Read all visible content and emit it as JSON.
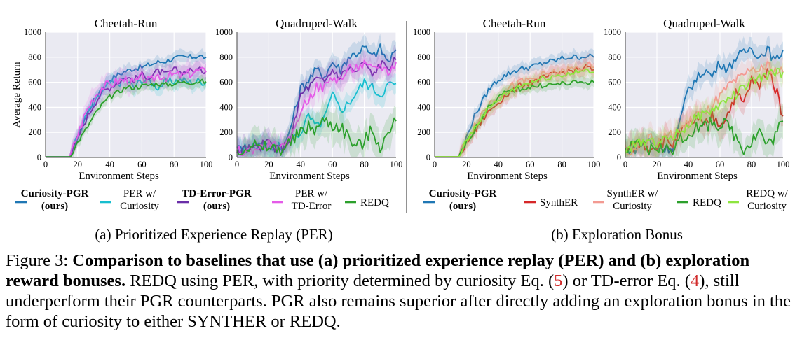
{
  "figure": {
    "panel_a_caption": "(a) Prioritized Experience Replay (PER)",
    "panel_b_caption": "(b) Exploration Bonus",
    "xlabel": "Environment Steps",
    "ylabel": "Average Return",
    "legend_a": [
      {
        "label": "Curiosity-PGR",
        "label2": "(ours)",
        "bold": true,
        "color": "#1f77b4"
      },
      {
        "label": "PER w/",
        "label2": "Curiosity",
        "bold": false,
        "color": "#17becf"
      },
      {
        "label": "TD-Error-PGR",
        "label2": "(ours)",
        "bold": true,
        "color": "#6a2ea8"
      },
      {
        "label": "PER w/",
        "label2": "TD-Error",
        "bold": false,
        "color": "#e45be8"
      },
      {
        "label": "REDQ",
        "label2": "",
        "bold": false,
        "color": "#2ca02c"
      }
    ],
    "legend_b": [
      {
        "label": "Curiosity-PGR",
        "label2": "(ours)",
        "bold": true,
        "color": "#1f77b4"
      },
      {
        "label": "SynthER",
        "label2": "",
        "bold": false,
        "color": "#d62728"
      },
      {
        "label": "SynthER w/",
        "label2": "Curiosity",
        "bold": false,
        "color": "#f39a92"
      },
      {
        "label": "REDQ",
        "label2": "",
        "bold": false,
        "color": "#2ca02c"
      },
      {
        "label": "REDQ w/",
        "label2": "Curiosity",
        "bold": false,
        "color": "#8ee53f"
      }
    ]
  },
  "caption": {
    "lead": "Figure 3: ",
    "bold": "Comparison to baselines that use (a) prioritized experience replay (PER) and (b) exploration reward bonuses.",
    "t1": " ",
    "sc1": "REDQ",
    "t2": " using PER, with priority determined by curiosity Eq. (",
    "ref1": "5",
    "t3": ") or TD-error Eq. (",
    "ref2": "4",
    "t4": "), still underperform their ",
    "sc2": "PGR",
    "t5": " counterparts. ",
    "sc3": "PGR",
    "t6": " also remains superior after directly adding an exploration bonus in the form of curiosity to either ",
    "sc4": "SYNTHER",
    "t7": " or ",
    "sc5": "REDQ",
    "t8": "."
  },
  "chart_data": [
    {
      "type": "line",
      "title": "Cheetah-Run",
      "panel": "a",
      "xlabel": "Environment Steps",
      "ylabel": "Average Return",
      "xlim": [
        0,
        100
      ],
      "ylim": [
        0,
        1000
      ],
      "xticks": [
        0,
        20,
        40,
        60,
        80,
        100
      ],
      "yticks": [
        0,
        200,
        400,
        600,
        800,
        1000
      ],
      "x": [
        0,
        5,
        10,
        15,
        20,
        25,
        30,
        35,
        40,
        45,
        50,
        55,
        60,
        65,
        70,
        75,
        80,
        85,
        90,
        95,
        100
      ],
      "series": [
        {
          "name": "Curiosity-PGR",
          "color": "#1f77b4",
          "band": 50,
          "values": [
            5,
            5,
            5,
            5,
            160,
            330,
            450,
            560,
            620,
            660,
            690,
            710,
            720,
            740,
            760,
            770,
            790,
            800,
            800,
            810,
            800
          ]
        },
        {
          "name": "PER w/ Curiosity",
          "color": "#17becf",
          "band": 70,
          "values": [
            5,
            5,
            5,
            5,
            170,
            330,
            420,
            520,
            590,
            590,
            620,
            560,
            620,
            610,
            560,
            600,
            610,
            620,
            600,
            610,
            600
          ]
        },
        {
          "name": "TD-Error-PGR",
          "color": "#6a2ea8",
          "band": 60,
          "values": [
            5,
            5,
            5,
            5,
            150,
            300,
            420,
            520,
            560,
            600,
            640,
            620,
            660,
            640,
            690,
            660,
            700,
            680,
            690,
            700,
            690
          ]
        },
        {
          "name": "PER w/ TD-Error",
          "color": "#e45be8",
          "band": 90,
          "values": [
            5,
            5,
            5,
            5,
            180,
            360,
            480,
            560,
            580,
            610,
            620,
            590,
            640,
            600,
            660,
            640,
            660,
            650,
            670,
            690,
            680
          ]
        },
        {
          "name": "REDQ",
          "color": "#2ca02c",
          "band": 45,
          "values": [
            5,
            5,
            5,
            5,
            120,
            220,
            330,
            420,
            480,
            520,
            560,
            560,
            570,
            580,
            590,
            580,
            590,
            600,
            600,
            605,
            605
          ]
        }
      ]
    },
    {
      "type": "line",
      "title": "Quadruped-Walk",
      "panel": "a",
      "xlabel": "Environment Steps",
      "ylabel": "",
      "xlim": [
        0,
        100
      ],
      "ylim": [
        0,
        1000
      ],
      "xticks": [
        0,
        20,
        40,
        60,
        80,
        100
      ],
      "yticks": [
        0,
        200,
        400,
        600,
        800,
        1000
      ],
      "x": [
        0,
        5,
        10,
        15,
        20,
        25,
        30,
        35,
        40,
        45,
        50,
        55,
        60,
        65,
        70,
        75,
        80,
        85,
        90,
        95,
        100
      ],
      "series": [
        {
          "name": "Curiosity-PGR",
          "color": "#1f77b4",
          "band": 90,
          "values": [
            70,
            60,
            100,
            130,
            80,
            70,
            80,
            300,
            550,
            620,
            700,
            650,
            760,
            700,
            800,
            830,
            880,
            800,
            870,
            760,
            860
          ]
        },
        {
          "name": "PER w/ Curiosity",
          "color": "#17becf",
          "band": 90,
          "values": [
            60,
            80,
            90,
            70,
            60,
            80,
            90,
            150,
            200,
            330,
            240,
            310,
            500,
            380,
            430,
            520,
            600,
            560,
            500,
            580,
            590
          ]
        },
        {
          "name": "TD-Error-PGR",
          "color": "#6a2ea8",
          "band": 90,
          "values": [
            50,
            70,
            60,
            90,
            130,
            60,
            90,
            200,
            500,
            560,
            620,
            600,
            700,
            640,
            720,
            680,
            760,
            650,
            750,
            720,
            780
          ]
        },
        {
          "name": "PER w/ TD-Error",
          "color": "#e45be8",
          "band": 90,
          "values": [
            60,
            40,
            70,
            80,
            110,
            90,
            70,
            180,
            380,
            470,
            560,
            560,
            640,
            620,
            700,
            720,
            740,
            700,
            740,
            680,
            760
          ]
        },
        {
          "name": "REDQ",
          "color": "#2ca02c",
          "band": 130,
          "values": [
            60,
            80,
            110,
            60,
            90,
            60,
            80,
            130,
            200,
            240,
            230,
            300,
            260,
            250,
            170,
            80,
            130,
            220,
            90,
            180,
            290
          ]
        }
      ]
    },
    {
      "type": "line",
      "title": "Cheetah-Run",
      "panel": "b",
      "xlabel": "Environment Steps",
      "ylabel": "",
      "xlim": [
        0,
        100
      ],
      "ylim": [
        0,
        1000
      ],
      "xticks": [
        0,
        20,
        40,
        60,
        80,
        100
      ],
      "yticks": [
        0,
        200,
        400,
        600,
        800,
        1000
      ],
      "x": [
        0,
        5,
        10,
        15,
        20,
        25,
        30,
        35,
        40,
        45,
        50,
        55,
        60,
        65,
        70,
        75,
        80,
        85,
        90,
        95,
        100
      ],
      "series": [
        {
          "name": "Curiosity-PGR",
          "color": "#1f77b4",
          "band": 50,
          "values": [
            5,
            5,
            5,
            5,
            160,
            330,
            450,
            560,
            620,
            660,
            690,
            710,
            720,
            740,
            760,
            770,
            790,
            800,
            800,
            810,
            800
          ]
        },
        {
          "name": "SynthER",
          "color": "#d62728",
          "band": 60,
          "values": [
            5,
            5,
            5,
            5,
            110,
            200,
            300,
            380,
            440,
            500,
            540,
            580,
            600,
            620,
            640,
            660,
            680,
            690,
            700,
            720,
            700
          ]
        },
        {
          "name": "SynthER w/ Curiosity",
          "color": "#f39a92",
          "band": 80,
          "values": [
            5,
            5,
            5,
            5,
            140,
            260,
            360,
            440,
            500,
            540,
            580,
            600,
            620,
            640,
            660,
            670,
            680,
            700,
            710,
            720,
            720
          ]
        },
        {
          "name": "REDQ",
          "color": "#2ca02c",
          "band": 45,
          "values": [
            5,
            5,
            5,
            5,
            120,
            220,
            330,
            420,
            480,
            520,
            540,
            550,
            560,
            570,
            580,
            580,
            590,
            590,
            600,
            600,
            600
          ]
        },
        {
          "name": "REDQ w/ Curiosity",
          "color": "#8ee53f",
          "band": 60,
          "values": [
            5,
            5,
            5,
            5,
            130,
            240,
            330,
            400,
            460,
            510,
            550,
            580,
            600,
            620,
            640,
            650,
            660,
            670,
            680,
            690,
            680
          ]
        }
      ]
    },
    {
      "type": "line",
      "title": "Quadruped-Walk",
      "panel": "b",
      "xlabel": "Environment Steps",
      "ylabel": "",
      "xlim": [
        0,
        100
      ],
      "ylim": [
        0,
        1000
      ],
      "xticks": [
        0,
        20,
        40,
        60,
        80,
        100
      ],
      "yticks": [
        0,
        200,
        400,
        600,
        800,
        1000
      ],
      "x": [
        0,
        5,
        10,
        15,
        20,
        25,
        30,
        35,
        40,
        45,
        50,
        55,
        60,
        65,
        70,
        75,
        80,
        85,
        90,
        95,
        100
      ],
      "series": [
        {
          "name": "Curiosity-PGR",
          "color": "#1f77b4",
          "band": 90,
          "values": [
            70,
            60,
            100,
            130,
            80,
            70,
            80,
            300,
            550,
            620,
            700,
            650,
            760,
            700,
            800,
            830,
            880,
            800,
            870,
            760,
            860
          ]
        },
        {
          "name": "SynthER",
          "color": "#d62728",
          "band": 110,
          "values": [
            40,
            90,
            120,
            80,
            100,
            140,
            110,
            200,
            250,
            310,
            240,
            330,
            270,
            350,
            510,
            430,
            620,
            560,
            720,
            560,
            330
          ]
        },
        {
          "name": "SynthER w/ Curiosity",
          "color": "#f39a92",
          "band": 100,
          "values": [
            60,
            70,
            120,
            160,
            110,
            160,
            180,
            230,
            270,
            360,
            330,
            420,
            480,
            560,
            610,
            640,
            720,
            680,
            740,
            690,
            680
          ]
        },
        {
          "name": "REDQ",
          "color": "#2ca02c",
          "band": 130,
          "values": [
            60,
            80,
            110,
            60,
            90,
            60,
            80,
            130,
            200,
            240,
            230,
            300,
            260,
            250,
            170,
            80,
            130,
            220,
            90,
            180,
            290
          ]
        },
        {
          "name": "REDQ w/ Curiosity",
          "color": "#8ee53f",
          "band": 90,
          "values": [
            50,
            90,
            120,
            150,
            120,
            140,
            170,
            210,
            260,
            320,
            340,
            380,
            420,
            470,
            500,
            560,
            600,
            630,
            650,
            680,
            680
          ]
        }
      ]
    }
  ]
}
